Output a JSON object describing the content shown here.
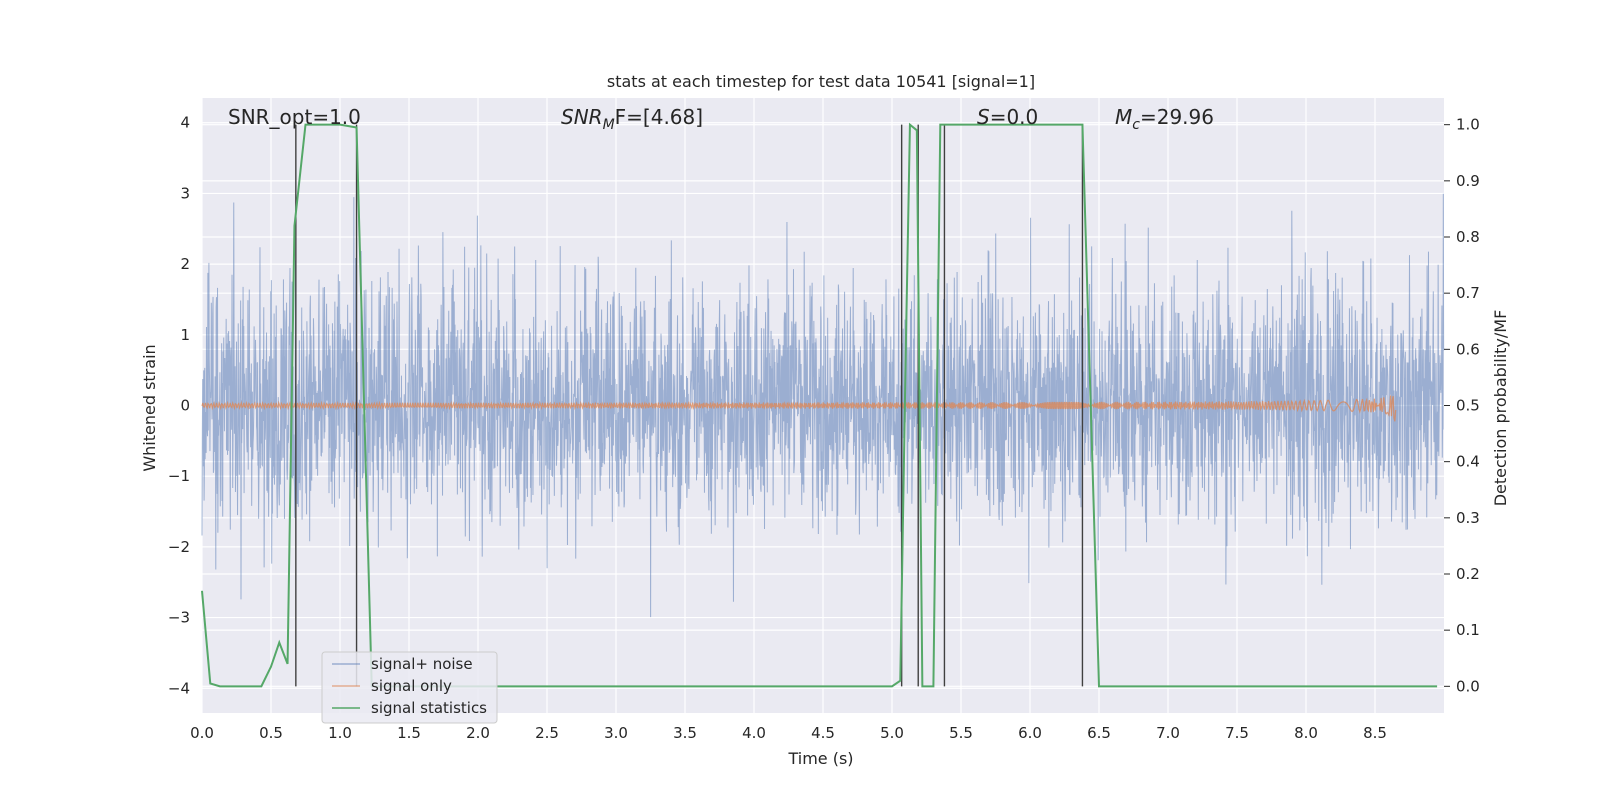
{
  "chart_data": {
    "type": "line",
    "title": "stats at each timestep for test data 10541 [signal=1]",
    "xlabel": "Time (s)",
    "ylabel": "Whitened strain",
    "y2label": "Detection probability/MF",
    "xlim": [
      0,
      9.0
    ],
    "ylim": [
      -4.35,
      4.35
    ],
    "y2lim": [
      -0.0475,
      1.0475
    ],
    "x_ticks": [
      "0.0",
      "0.5",
      "1.0",
      "1.5",
      "2.0",
      "2.5",
      "3.0",
      "3.5",
      "4.0",
      "4.5",
      "5.0",
      "5.5",
      "6.0",
      "6.5",
      "7.0",
      "7.5",
      "8.0",
      "8.5"
    ],
    "y_ticks": [
      "4",
      "3",
      "2",
      "1",
      "0",
      "−1",
      "−2",
      "−3",
      "−4"
    ],
    "y2_ticks": [
      "1.0",
      "0.9",
      "0.8",
      "0.7",
      "0.6",
      "0.5",
      "0.4",
      "0.3",
      "0.2",
      "0.1",
      "0.0"
    ],
    "grid": true,
    "legend_position": "lower-left",
    "annotations": {
      "snr_opt": "SNR_opt=1.0",
      "snr_mf_var": "SNR",
      "snr_mf_sub": "M",
      "snr_mf_rest": "F=[4.68]",
      "s_var": "S",
      "s_rest": "=0.0",
      "mc_var": "M",
      "mc_sub": "c",
      "mc_rest": "=29.96"
    },
    "series": [
      {
        "name": "signal+ noise",
        "color": "#4c72b0",
        "description_values": "whitened noise, std≈0.8, range ≈ [-3.6, 3.5], t in [0, 9.0]"
      },
      {
        "name": "signal only",
        "color": "#dd8452",
        "chirp_end_time": 8.65,
        "chirp_max_amplitude": 0.25
      },
      {
        "name": "signal statistics",
        "color": "#55a868",
        "x": [
          0.0,
          0.06,
          0.13,
          0.2,
          0.3,
          0.43,
          0.5,
          0.56,
          0.62,
          0.67,
          0.75,
          0.85,
          1.0,
          1.12,
          1.23,
          1.3,
          1.5,
          2.0,
          3.0,
          4.0,
          5.0,
          5.06,
          5.1,
          5.13,
          5.18,
          5.22,
          5.27,
          5.3,
          5.35,
          5.43,
          5.5,
          6.0,
          6.38,
          6.5,
          6.8,
          7.5,
          8.5,
          8.95
        ],
        "y": [
          0.17,
          0.005,
          0.0,
          0.0,
          0.0,
          0.0,
          0.035,
          0.078,
          0.04,
          0.82,
          1.0,
          1.0,
          1.0,
          0.995,
          0.0,
          0.0,
          0.0,
          0.0,
          0.0,
          0.0,
          0.0,
          0.01,
          0.6,
          1.0,
          0.99,
          0.0,
          0.0,
          0.0,
          1.0,
          1.0,
          1.0,
          1.0,
          1.0,
          0.0,
          0.0,
          0.0,
          0.0,
          0.0
        ]
      }
    ],
    "vertical_markers": [
      0.68,
      1.12,
      5.07,
      5.19,
      5.38,
      6.38
    ],
    "marker_color": "#404040"
  }
}
